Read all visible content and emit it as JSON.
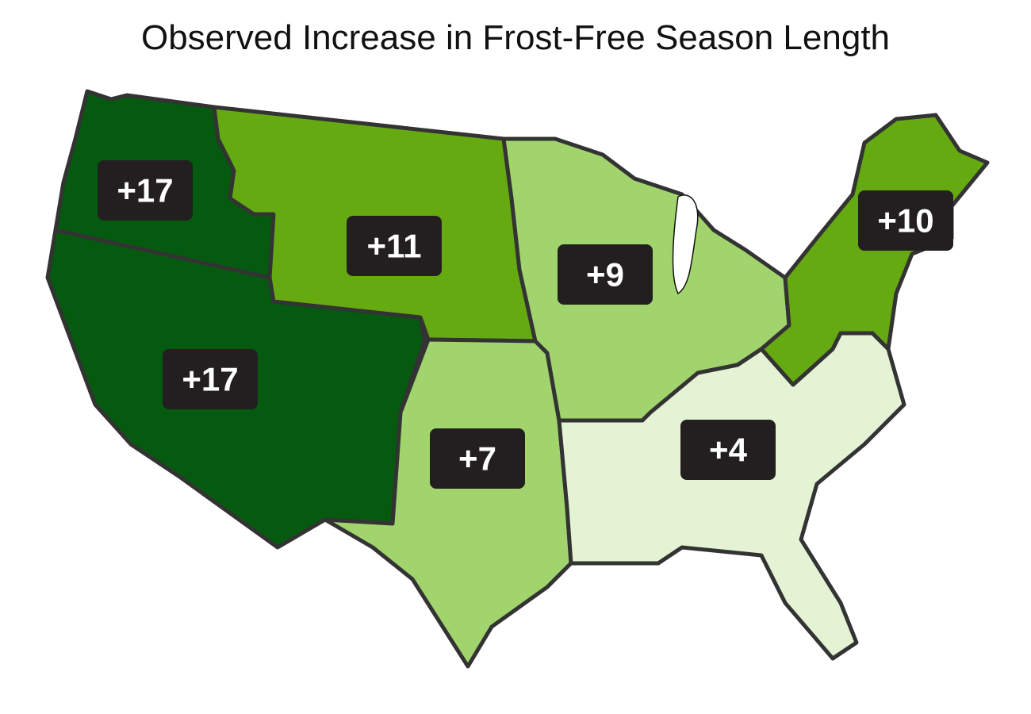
{
  "title": "Observed Increase in Frost-Free Season Length",
  "regions": [
    {
      "label": "+17",
      "color": "#055a0f"
    },
    {
      "label": "+17",
      "color": "#055a0f"
    },
    {
      "label": "+11",
      "color": "#66aa12"
    },
    {
      "label": "+7",
      "color": "#a1d46d"
    },
    {
      "label": "+9",
      "color": "#a1d46d"
    },
    {
      "label": "+10",
      "color": "#66aa12"
    },
    {
      "label": "+4",
      "color": "#e4f3d3"
    }
  ]
}
